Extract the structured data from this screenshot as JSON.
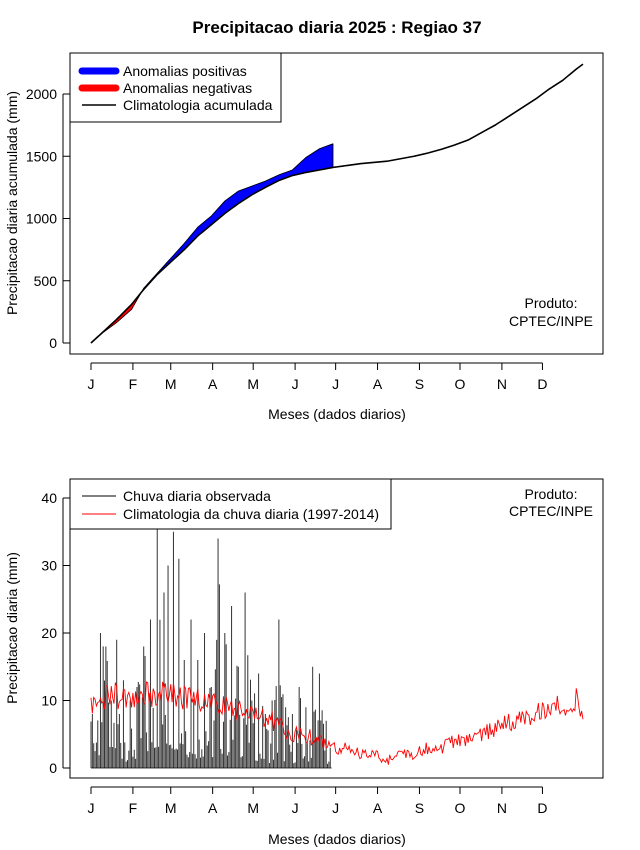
{
  "title": "Precipitacao diaria 2025 : Regiao 37",
  "months": [
    "J",
    "F",
    "M",
    "A",
    "M",
    "J",
    "J",
    "A",
    "S",
    "O",
    "N",
    "D"
  ],
  "colors": {
    "positive": "#0000ff",
    "negative": "#ff0000",
    "clim_line": "#000000",
    "obs_bar": "#333333",
    "clim_daily": "#ff0000"
  },
  "chart_data": [
    {
      "type": "area",
      "title": "Precipitacao diaria 2025 : Regiao 37",
      "xlabel": "Meses (dados diarios)",
      "ylabel": "Precipitacao diaria acumulada (mm)",
      "xlim": [
        1,
        365
      ],
      "ylim": [
        0,
        2250
      ],
      "yticks": [
        0,
        500,
        1000,
        1500,
        2000
      ],
      "legend_position": "top-left",
      "legend": [
        "Anomalias positivas",
        "Anomalias negativas",
        "Climatologia acumulada"
      ],
      "annotation": [
        "Produto:",
        "CPTEC/INPE"
      ],
      "climatology_cumulative": {
        "x": [
          1,
          10,
          20,
          31,
          40,
          50,
          60,
          70,
          80,
          90,
          100,
          110,
          120,
          130,
          140,
          150,
          160,
          170,
          180,
          190,
          200,
          210,
          220,
          230,
          240,
          250,
          260,
          270,
          280,
          290,
          300,
          310,
          320,
          330,
          340,
          350,
          360,
          365
        ],
        "y": [
          0,
          90,
          190,
          310,
          430,
          550,
          650,
          750,
          860,
          950,
          1040,
          1120,
          1190,
          1250,
          1305,
          1345,
          1370,
          1390,
          1410,
          1425,
          1440,
          1450,
          1460,
          1480,
          1500,
          1525,
          1555,
          1590,
          1630,
          1690,
          1750,
          1820,
          1890,
          1960,
          2040,
          2110,
          2200,
          2240
        ]
      },
      "observed_cumulative": {
        "x": [
          1,
          10,
          20,
          31,
          40,
          50,
          60,
          70,
          80,
          90,
          100,
          110,
          120,
          130,
          140,
          150,
          160,
          170,
          180
        ],
        "y": [
          0,
          85,
          165,
          270,
          440,
          560,
          680,
          800,
          930,
          1020,
          1140,
          1220,
          1260,
          1300,
          1350,
          1390,
          1490,
          1560,
          1600
        ]
      }
    },
    {
      "type": "bar",
      "xlabel": "Meses (dados diarios)",
      "ylabel": "Precipitacao diaria (mm)",
      "xlim": [
        1,
        365
      ],
      "ylim": [
        0,
        42
      ],
      "yticks": [
        0,
        10,
        20,
        30,
        40
      ],
      "legend_position": "top-left",
      "legend": [
        "Chuva diaria observada",
        "Climatologia da chuva diaria (1997-2014)"
      ],
      "annotation": [
        "Produto:",
        "CPTEC/INPE"
      ],
      "observed_daily_peaks": {
        "x": [
          2,
          8,
          12,
          16,
          20,
          25,
          30,
          35,
          40,
          45,
          50,
          55,
          58,
          62,
          66,
          70,
          75,
          80,
          85,
          90,
          95,
          100,
          105,
          110,
          115,
          120,
          125,
          130,
          135,
          140,
          145,
          150,
          155,
          160,
          165,
          170,
          175,
          178
        ],
        "y": [
          8,
          20,
          18,
          10,
          19,
          13,
          10,
          12,
          18,
          22,
          36,
          26,
          30,
          35,
          31,
          16,
          22,
          16,
          20,
          12,
          34,
          20,
          24,
          15,
          26,
          10,
          14,
          8,
          10,
          22,
          9,
          8,
          12,
          9,
          15,
          14,
          7,
          3
        ]
      },
      "climatology_daily": {
        "x": [
          1,
          15,
          30,
          45,
          60,
          75,
          90,
          105,
          120,
          135,
          150,
          160,
          170,
          180,
          190,
          200,
          210,
          220,
          230,
          240,
          250,
          260,
          270,
          280,
          290,
          300,
          310,
          320,
          330,
          340,
          350,
          360,
          365
        ],
        "y": [
          9,
          11,
          10,
          11,
          11,
          10,
          10,
          9,
          8,
          7,
          5,
          5,
          4,
          3,
          3,
          2,
          2,
          1,
          2,
          2,
          3,
          3,
          4,
          4,
          5,
          6,
          7,
          7,
          8,
          9,
          9,
          10,
          7
        ]
      }
    }
  ]
}
